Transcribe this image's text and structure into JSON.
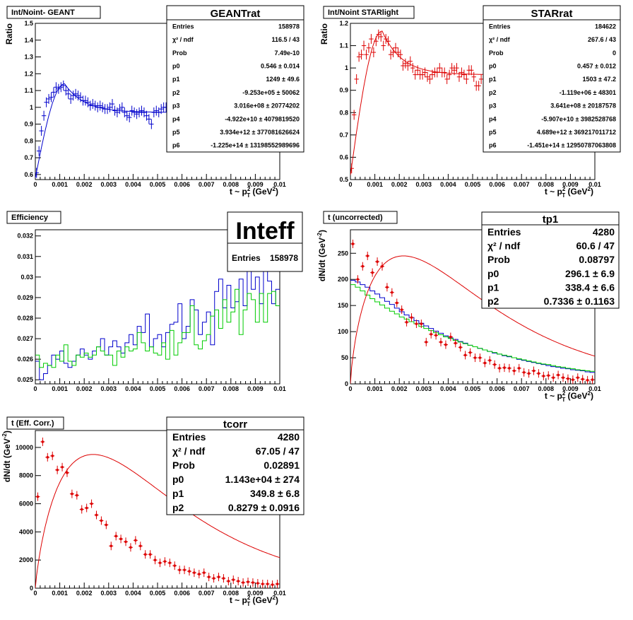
{
  "chart_data": [
    {
      "type": "scatter",
      "title": "Int/Noint- GEANT",
      "xlabel": "t ~ p²_T (GeV²)",
      "xlabel_main": "t ~ p",
      "xlabel_sup": "2",
      "xlabel_sub": "T",
      "xlabel_unit": "(GeV",
      "xlabel_unit_sup": "2",
      "xlabel_close": ")",
      "ylabel": "Ratio",
      "xlim": [
        0,
        0.01
      ],
      "ylim": [
        0.57,
        1.5
      ],
      "xticks": [
        "0",
        "0.001",
        "0.002",
        "0.003",
        "0.004",
        "0.005",
        "0.006",
        "0.007",
        "0.008",
        "0.009",
        "0.01"
      ],
      "yticks": [
        0.6,
        0.7,
        0.8,
        0.9,
        1.0,
        1.1,
        1.2,
        1.3,
        1.4,
        1.5
      ],
      "ytick_labels": [
        "0.6",
        "0.7",
        "0.8",
        "0.9",
        "1",
        "1.1",
        "1.2",
        "1.3",
        "1.4",
        "1.5"
      ],
      "color": "#0000cc",
      "points_x": [
        5e-05,
        0.00015,
        0.00025,
        0.00035,
        0.00045,
        0.00055,
        0.00065,
        0.00075,
        0.00085,
        0.00095,
        0.00105,
        0.00115,
        0.00125,
        0.00135,
        0.00145,
        0.00155,
        0.00165,
        0.00175,
        0.00185,
        0.00195,
        0.00205,
        0.00215,
        0.00225,
        0.00235,
        0.00245,
        0.00255,
        0.00265,
        0.00275,
        0.00285,
        0.00295,
        0.00305,
        0.00315,
        0.00325,
        0.00335,
        0.00345,
        0.00355,
        0.00365,
        0.00375,
        0.00385,
        0.00395,
        0.00405,
        0.00415,
        0.00425,
        0.00435,
        0.00445,
        0.00455,
        0.00465,
        0.00475,
        0.00485,
        0.00495,
        0.00505,
        0.00515,
        0.00525,
        0.00535
      ],
      "points_y": [
        0.61,
        0.74,
        0.86,
        0.95,
        1.03,
        1.05,
        1.06,
        1.09,
        1.12,
        1.11,
        1.12,
        1.13,
        1.1,
        1.08,
        1.05,
        1.07,
        1.08,
        1.07,
        1.06,
        1.04,
        1.04,
        1.03,
        1.01,
        1.02,
        1.01,
        1.0,
        1.01,
        1.0,
        0.99,
        0.99,
        1.0,
        1.02,
        0.98,
        0.97,
        0.99,
        1.0,
        0.97,
        0.95,
        0.94,
        0.98,
        0.97,
        0.96,
        0.97,
        0.98,
        0.97,
        0.95,
        0.93,
        0.9,
        0.97,
        0.98,
        0.97,
        0.99,
        1.0,
        1.0
      ],
      "fit": {
        "peak_x": 0.0012,
        "peak_y": 1.14,
        "start_y": 0.58,
        "plateau_y": 0.97
      },
      "stats": {
        "name": "GEANTrat",
        "rows": [
          [
            "Entries",
            "158978"
          ],
          [
            "χ² / ndf",
            "116.5 / 43"
          ],
          [
            "Prob",
            "7.49e-10"
          ],
          [
            "p0",
            "0.546 ± 0.014"
          ],
          [
            "p1",
            "1249 ± 49.6"
          ],
          [
            "p2",
            "-9.253e+05 ± 50062"
          ],
          [
            "p3",
            "3.016e+08 ± 20774202"
          ],
          [
            "p4",
            "-4.922e+10 ± 4079819520"
          ],
          [
            "p5",
            "3.934e+12 ± 377081626624"
          ],
          [
            "p6",
            "-1.225e+14 ± 13198552989696"
          ]
        ]
      }
    },
    {
      "type": "scatter",
      "title": "Int/Noint STARlight",
      "xlabel": "t ~ p²_T (GeV²)",
      "xlabel_main": "t ~ p",
      "xlabel_sup": "2",
      "xlabel_sub": "T",
      "xlabel_unit": "(GeV",
      "xlabel_unit_sup": "2",
      "xlabel_close": ")",
      "ylabel": "Ratio",
      "xlim": [
        0,
        0.01
      ],
      "ylim": [
        0.5,
        1.2
      ],
      "xticks": [
        "0",
        "0.001",
        "0.002",
        "0.003",
        "0.004",
        "0.005",
        "0.006",
        "0.007",
        "0.008",
        "0.009",
        "0.01"
      ],
      "yticks": [
        0.5,
        0.6,
        0.7,
        0.8,
        0.9,
        1.0,
        1.1,
        1.2
      ],
      "ytick_labels": [
        "0.5",
        "0.6",
        "0.7",
        "0.8",
        "0.9",
        "1",
        "1.1",
        "1.2"
      ],
      "color": "#dd0000",
      "points_x": [
        5e-05,
        0.00015,
        0.00025,
        0.00035,
        0.00045,
        0.00055,
        0.00065,
        0.00075,
        0.00085,
        0.00095,
        0.00105,
        0.00115,
        0.00125,
        0.00135,
        0.00145,
        0.00155,
        0.00165,
        0.00175,
        0.00185,
        0.00195,
        0.00205,
        0.00215,
        0.00225,
        0.00235,
        0.00245,
        0.00255,
        0.00265,
        0.00275,
        0.00285,
        0.00295,
        0.00305,
        0.00315,
        0.00325,
        0.00335,
        0.00345,
        0.00355,
        0.00365,
        0.00375,
        0.00385,
        0.00395,
        0.00405,
        0.00415,
        0.00425,
        0.00435,
        0.00445,
        0.00455,
        0.00465,
        0.00475,
        0.00485,
        0.00495,
        0.00505,
        0.00515,
        0.00525,
        0.00535
      ],
      "points_y": [
        0.55,
        0.79,
        0.95,
        1.05,
        1.06,
        1.1,
        1.06,
        1.09,
        1.13,
        1.07,
        1.12,
        1.15,
        1.14,
        1.1,
        1.13,
        1.12,
        1.06,
        1.07,
        1.09,
        1.07,
        1.06,
        1.01,
        1.02,
        1.01,
        1.03,
        1.0,
        0.97,
        0.99,
        0.97,
        0.97,
        0.98,
        0.96,
        0.95,
        0.97,
        0.98,
        0.98,
        1.0,
        0.98,
        0.98,
        0.95,
        0.97,
        1.0,
        0.99,
        1.0,
        0.96,
        0.98,
        0.97,
        0.95,
        0.99,
        0.99,
        0.96,
        0.92,
        0.92,
        0.95
      ],
      "fit": {
        "peak_x": 0.0013,
        "peak_y": 1.165,
        "start_y": 0.52,
        "plateau_y": 0.97
      },
      "stats": {
        "name": "STARrat",
        "rows": [
          [
            "Entries",
            "184622"
          ],
          [
            "χ² / ndf",
            "267.6 / 43"
          ],
          [
            "Prob",
            "0"
          ],
          [
            "p0",
            "0.457 ± 0.012"
          ],
          [
            "p1",
            "1503 ± 47.2"
          ],
          [
            "p2",
            "-1.119e+06 ± 48301"
          ],
          [
            "p3",
            "3.641e+08 ± 20187578"
          ],
          [
            "p4",
            "-5.907e+10 ± 3982528768"
          ],
          [
            "p5",
            "4.689e+12 ± 369217011712"
          ],
          [
            "p6",
            "-1.451e+14 ± 12950787063808"
          ]
        ]
      }
    },
    {
      "type": "step",
      "title": "Efficiency",
      "xlabel": "",
      "ylabel": "",
      "xlim": [
        0,
        0.01
      ],
      "ylim": [
        0.0248,
        0.0323
      ],
      "xticks": [
        "0",
        "0.001",
        "0.002",
        "0.003",
        "0.004",
        "0.005",
        "0.006",
        "0.007",
        "0.008",
        "0.009",
        "0.01"
      ],
      "yticks": [
        0.025,
        0.026,
        0.027,
        0.028,
        0.029,
        0.03,
        0.031,
        0.032
      ],
      "ytick_labels": [
        "0.025",
        "0.026",
        "0.027",
        "0.028",
        "0.029",
        "0.03",
        "0.031",
        "0.032"
      ],
      "series": [
        {
          "color": "#0000cc",
          "values": [
            0.0259,
            0.025,
            0.0253,
            0.0257,
            0.0262,
            0.026,
            0.0264,
            0.0258,
            0.0256,
            0.0259,
            0.0262,
            0.0265,
            0.0262,
            0.026,
            0.0264,
            0.0266,
            0.027,
            0.0262,
            0.0266,
            0.0269,
            0.0266,
            0.0263,
            0.0268,
            0.0272,
            0.0267,
            0.0276,
            0.0273,
            0.0282,
            0.0266,
            0.027,
            0.0272,
            0.0266,
            0.0273,
            0.0277,
            0.0278,
            0.0287,
            0.027,
            0.0276,
            0.0289,
            0.0284,
            0.0272,
            0.0278,
            0.0283,
            0.0267,
            0.0293,
            0.0299,
            0.0285,
            0.0296,
            0.0285,
            0.0288,
            0.0299,
            0.0286,
            0.0305,
            0.0294,
            0.03,
            0.0287,
            0.0306,
            0.0298,
            0.0287,
            0.0294
          ]
        },
        {
          "color": "#00cc00",
          "values": [
            0.0262,
            0.0256,
            0.0258,
            0.0257,
            0.0256,
            0.0262,
            0.0259,
            0.0267,
            0.0259,
            0.0257,
            0.0262,
            0.0261,
            0.0263,
            0.0261,
            0.0262,
            0.0266,
            0.0264,
            0.0262,
            0.0262,
            0.0257,
            0.0264,
            0.0261,
            0.0266,
            0.0264,
            0.0265,
            0.0273,
            0.0268,
            0.0264,
            0.0266,
            0.0263,
            0.0262,
            0.0268,
            0.026,
            0.0274,
            0.0262,
            0.0268,
            0.0273,
            0.0273,
            0.0286,
            0.0267,
            0.0265,
            0.0269,
            0.0272,
            0.0281,
            0.0284,
            0.0275,
            0.0289,
            0.0278,
            0.0283,
            0.0294,
            0.0272,
            0.0284,
            0.0292,
            0.0289,
            0.0278,
            0.0292,
            0.0278,
            0.0292,
            0.0293,
            0.0286
          ]
        }
      ],
      "stats": {
        "name": "Inteff",
        "rows": [
          [
            "Entries",
            "158978"
          ]
        ]
      }
    },
    {
      "type": "histogram+scatter",
      "title": "t (uncorrected)",
      "xlabel": "t ~ p²_T (GeV²)",
      "xlabel_main": "t ~ p",
      "xlabel_sup": "2",
      "xlabel_sub": "T",
      "xlabel_unit": "(GeV",
      "xlabel_unit_sup": "2",
      "xlabel_close": ")",
      "ylabel": "dN/dt (GeV⁻²)",
      "ylabel_main": "dN/dt (GeV",
      "ylabel_sup": "-2",
      "ylabel_close": ")",
      "xlim": [
        0,
        0.01
      ],
      "ylim": [
        0,
        295
      ],
      "xticks": [
        "0",
        "0.001",
        "0.002",
        "0.003",
        "0.004",
        "0.005",
        "0.006",
        "0.007",
        "0.008",
        "0.009",
        "0.01"
      ],
      "yticks": [
        0,
        50,
        100,
        150,
        200,
        250
      ],
      "ytick_labels": [
        "0",
        "50",
        "100",
        "150",
        "200",
        "250"
      ],
      "points_x": [
        0.0001,
        0.0003,
        0.0005,
        0.0007,
        0.0009,
        0.0011,
        0.0013,
        0.0015,
        0.0017,
        0.0019,
        0.0021,
        0.0023,
        0.0025,
        0.0027,
        0.0029,
        0.0031,
        0.0033,
        0.0035,
        0.0037,
        0.0039,
        0.0041,
        0.0043,
        0.0045,
        0.0047,
        0.0049,
        0.0051,
        0.0053,
        0.0055,
        0.0057,
        0.0059,
        0.0061,
        0.0063,
        0.0065,
        0.0067,
        0.0069,
        0.0071,
        0.0073,
        0.0075,
        0.0077,
        0.0079,
        0.0081,
        0.0083,
        0.0085,
        0.0087,
        0.0089,
        0.0091,
        0.0093,
        0.0095,
        0.0097,
        0.0099
      ],
      "points_y": [
        268,
        200,
        225,
        245,
        213,
        234,
        225,
        185,
        175,
        155,
        142,
        118,
        127,
        115,
        115,
        80,
        95,
        93,
        80,
        75,
        90,
        78,
        70,
        55,
        60,
        50,
        50,
        40,
        45,
        37,
        30,
        31,
        30,
        25,
        30,
        22,
        20,
        25,
        20,
        15,
        16,
        12,
        17,
        12,
        10,
        8,
        12,
        9,
        7,
        8
      ],
      "fit": {
        "p0": 296.1,
        "p1": 338.4,
        "p2": 0.7336
      },
      "series": [
        {
          "color": "#0000cc",
          "values": [
            198,
            195,
            190,
            185,
            178,
            172,
            165,
            158,
            152,
            145,
            138,
            132,
            127,
            121,
            116,
            111,
            106,
            101,
            97,
            92,
            88,
            85,
            81,
            78,
            74,
            71,
            68,
            65,
            62,
            59,
            57,
            54,
            52,
            50,
            47,
            45,
            43,
            41,
            39,
            37,
            35,
            33,
            32,
            30,
            29,
            27,
            26,
            25,
            23,
            22
          ]
        },
        {
          "color": "#00cc00",
          "values": [
            190,
            185,
            178,
            170,
            163,
            157,
            151,
            145,
            139,
            134,
            128,
            124,
            119,
            115,
            110,
            106,
            102,
            98,
            94,
            90,
            87,
            83,
            80,
            77,
            74,
            71,
            68,
            65,
            62,
            60,
            57,
            55,
            53,
            50,
            48,
            46,
            44,
            42,
            40,
            38,
            37,
            35,
            33,
            32,
            30,
            29,
            27,
            26,
            25,
            24
          ]
        }
      ],
      "stats": {
        "name": "tp1",
        "rows": [
          [
            "Entries",
            "4280"
          ],
          [
            "χ² / ndf",
            "60.6 / 47"
          ],
          [
            "Prob",
            "0.08797"
          ],
          [
            "p0",
            "296.1 ± 6.9"
          ],
          [
            "p1",
            "338.4 ± 6.6"
          ],
          [
            "p2",
            "0.7336 ± 0.1163"
          ]
        ]
      }
    },
    {
      "type": "scatter",
      "title": "t (Eff. Corr.)",
      "xlabel": "t ~ p²_T (GeV²)",
      "xlabel_main": "t ~ p",
      "xlabel_sup": "2",
      "xlabel_sub": "T",
      "xlabel_unit": "(GeV",
      "xlabel_unit_sup": "2",
      "xlabel_close": ")",
      "ylabel": "dN/dt (GeV⁻²)",
      "ylabel_main": "dN/dt (GeV",
      "ylabel_sup": "-2",
      "ylabel_close": ")",
      "xlim": [
        0,
        0.01
      ],
      "ylim": [
        0,
        11200
      ],
      "xticks": [
        "0",
        "0.001",
        "0.002",
        "0.003",
        "0.004",
        "0.005",
        "0.006",
        "0.007",
        "0.008",
        "0.009",
        "0.01"
      ],
      "yticks": [
        0,
        2000,
        4000,
        6000,
        8000,
        10000
      ],
      "ytick_labels": [
        "0",
        "2000",
        "4000",
        "6000",
        "8000",
        "10000"
      ],
      "points_x": [
        0.0001,
        0.0003,
        0.0005,
        0.0007,
        0.0009,
        0.0011,
        0.0013,
        0.0015,
        0.0017,
        0.0019,
        0.0021,
        0.0023,
        0.0025,
        0.0027,
        0.0029,
        0.0031,
        0.0033,
        0.0035,
        0.0037,
        0.0039,
        0.0041,
        0.0043,
        0.0045,
        0.0047,
        0.0049,
        0.0051,
        0.0053,
        0.0055,
        0.0057,
        0.0059,
        0.0061,
        0.0063,
        0.0065,
        0.0067,
        0.0069,
        0.0071,
        0.0073,
        0.0075,
        0.0077,
        0.0079,
        0.0081,
        0.0083,
        0.0085,
        0.0087,
        0.0089,
        0.0091,
        0.0093,
        0.0095,
        0.0097,
        0.0099
      ],
      "points_y": [
        6500,
        10400,
        9300,
        9400,
        8400,
        8600,
        8200,
        6700,
        6600,
        5600,
        5700,
        6000,
        5200,
        4800,
        4500,
        3000,
        3700,
        3500,
        3300,
        2900,
        3400,
        3000,
        2400,
        2400,
        2000,
        1800,
        1900,
        1800,
        1600,
        1300,
        1300,
        1200,
        1100,
        1000,
        1100,
        800,
        700,
        800,
        700,
        500,
        600,
        500,
        400,
        450,
        400,
        350,
        300,
        300,
        250,
        300
      ],
      "fit": {
        "p0": 11430,
        "p1": 349.8,
        "p2": 0.8279
      },
      "stats": {
        "name": "tcorr",
        "rows": [
          [
            "Entries",
            "4280"
          ],
          [
            "χ² / ndf",
            "67.05 / 47"
          ],
          [
            "Prob",
            "0.02891"
          ],
          [
            "p0",
            "1.143e+04 ± 274"
          ],
          [
            "p1",
            "349.8 ± 6.8"
          ],
          [
            "p2",
            "0.8279 ± 0.0916"
          ]
        ]
      }
    }
  ]
}
